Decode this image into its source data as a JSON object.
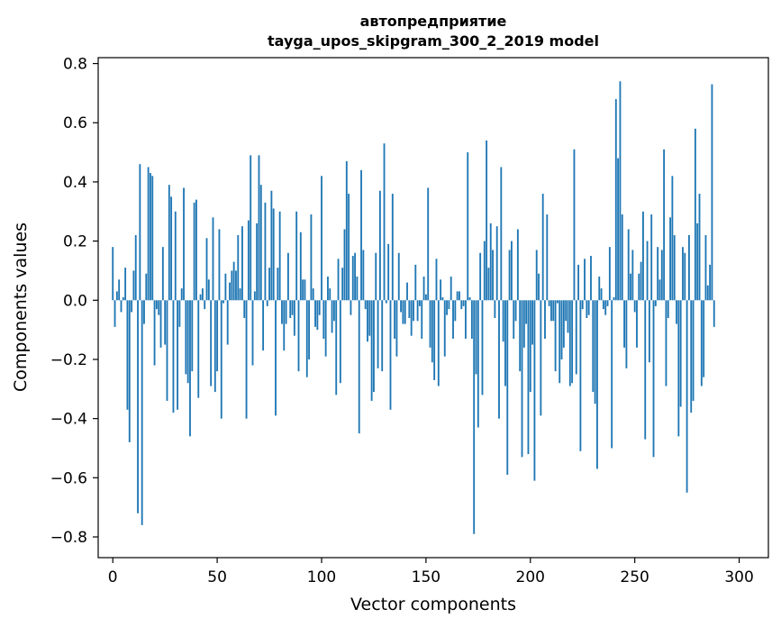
{
  "chart_data": {
    "type": "bar",
    "title_line1": "автопредприятие",
    "title_line2": "tayga_upos_skipgram_300_2_2019 model",
    "xlabel": "Vector components",
    "ylabel": "Components values",
    "xlim": [
      -7,
      314
    ],
    "ylim": [
      -0.87,
      0.82
    ],
    "x_ticks": [
      0,
      50,
      100,
      150,
      200,
      250,
      300
    ],
    "x_tick_labels": [
      "0",
      "50",
      "100",
      "150",
      "200",
      "250",
      "300"
    ],
    "y_ticks": [
      0.8,
      0.6,
      0.4,
      0.2,
      0.0,
      -0.2,
      -0.4,
      -0.6,
      -0.8
    ],
    "y_tick_labels": [
      "0.8",
      "0.6",
      "0.4",
      "0.2",
      "0.0",
      "−0.2",
      "−0.4",
      "−0.6",
      "−0.8"
    ],
    "bar_color": "#1f77b4",
    "bar_width": 0.8,
    "values": [
      0.18,
      -0.09,
      0.03,
      0.07,
      -0.04,
      0.01,
      0.11,
      -0.37,
      -0.48,
      -0.04,
      0.1,
      0.22,
      -0.72,
      0.46,
      -0.76,
      -0.08,
      0.09,
      0.45,
      0.43,
      0.42,
      -0.22,
      -0.03,
      -0.05,
      -0.16,
      0.18,
      -0.15,
      -0.34,
      0.39,
      0.35,
      -0.38,
      0.3,
      -0.37,
      -0.09,
      0.04,
      0.38,
      -0.25,
      -0.28,
      -0.46,
      -0.24,
      0.33,
      0.34,
      -0.33,
      0.02,
      0.04,
      -0.03,
      0.21,
      0.07,
      -0.29,
      0.28,
      -0.31,
      -0.24,
      0.24,
      -0.4,
      -0.01,
      0.09,
      -0.15,
      0.06,
      0.1,
      0.13,
      0.1,
      0.22,
      0.04,
      0.25,
      -0.06,
      -0.4,
      0.27,
      0.49,
      -0.22,
      0.03,
      0.26,
      0.49,
      0.39,
      -0.17,
      0.33,
      -0.02,
      0.11,
      0.37,
      0.31,
      -0.39,
      0.11,
      0.3,
      -0.08,
      -0.17,
      -0.08,
      0.16,
      -0.06,
      -0.05,
      -0.12,
      0.3,
      -0.24,
      0.23,
      0.07,
      0.07,
      -0.26,
      -0.2,
      0.29,
      0.04,
      -0.09,
      -0.1,
      -0.05,
      0.42,
      -0.13,
      -0.19,
      0.08,
      0.04,
      -0.11,
      -0.07,
      -0.32,
      0.14,
      -0.28,
      0.11,
      0.24,
      0.47,
      0.36,
      -0.05,
      0.15,
      0.16,
      0.08,
      -0.45,
      0.44,
      0.17,
      -0.03,
      -0.14,
      -0.12,
      -0.34,
      -0.31,
      0.16,
      -0.23,
      0.37,
      -0.24,
      0.53,
      -0.01,
      0.19,
      -0.37,
      0.36,
      -0.13,
      -0.19,
      0.16,
      -0.04,
      -0.08,
      -0.08,
      0.06,
      -0.06,
      -0.12,
      -0.07,
      0.12,
      -0.07,
      -0.02,
      -0.13,
      0.08,
      0.02,
      0.38,
      -0.16,
      -0.21,
      -0.27,
      0.14,
      -0.29,
      0.07,
      0.01,
      -0.19,
      -0.05,
      -0.03,
      0.08,
      -0.13,
      -0.07,
      0.03,
      0.03,
      -0.03,
      -0.02,
      -0.13,
      0.5,
      0.01,
      -0.13,
      -0.79,
      -0.25,
      -0.43,
      0.16,
      -0.32,
      0.2,
      0.54,
      0.11,
      0.26,
      0.17,
      -0.06,
      0.25,
      -0.4,
      0.45,
      -0.14,
      -0.29,
      -0.59,
      0.17,
      0.2,
      -0.13,
      -0.07,
      0.24,
      -0.24,
      -0.53,
      -0.16,
      -0.08,
      -0.52,
      -0.31,
      -0.15,
      -0.61,
      0.17,
      0.09,
      -0.39,
      0.36,
      -0.13,
      0.29,
      -0.02,
      -0.07,
      -0.07,
      -0.24,
      -0.01,
      -0.28,
      -0.2,
      -0.16,
      -0.07,
      -0.11,
      -0.29,
      -0.28,
      0.51,
      -0.25,
      0.12,
      -0.51,
      -0.03,
      0.14,
      -0.06,
      -0.05,
      0.15,
      -0.31,
      -0.35,
      -0.57,
      0.08,
      0.04,
      -0.03,
      -0.05,
      -0.02,
      0.18,
      -0.5,
      0.01,
      0.68,
      0.48,
      0.74,
      0.29,
      -0.16,
      -0.23,
      0.24,
      0.09,
      0.17,
      -0.04,
      -0.16,
      0.09,
      0.13,
      0.3,
      -0.47,
      0.2,
      -0.21,
      0.29,
      -0.53,
      -0.02,
      0.18,
      0.07,
      0.17,
      0.51,
      -0.29,
      -0.06,
      0.28,
      0.42,
      0.22,
      -0.08,
      -0.46,
      -0.36,
      0.18,
      0.16,
      -0.65,
      0.22,
      -0.38,
      -0.34,
      0.58,
      0.26,
      0.36,
      -0.29,
      -0.26,
      0.22,
      0.05,
      0.12,
      0.73,
      -0.09
    ]
  }
}
